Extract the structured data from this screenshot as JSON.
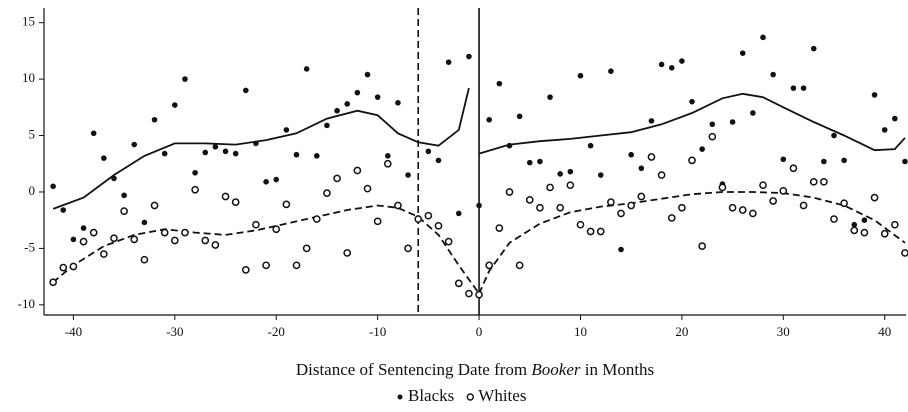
{
  "chart_data": {
    "type": "scatter",
    "x_label": {
      "before": "Distance of Sentencing Date from ",
      "italic": "Booker",
      "after": " in Months"
    },
    "xlim": [
      -42.9,
      42.1
    ],
    "ylim": [
      -10.9,
      16.3
    ],
    "xticks": [
      -40,
      -30,
      -20,
      -10,
      0,
      10,
      20,
      30,
      40
    ],
    "yticks": [
      -10,
      -5,
      0,
      5,
      10,
      15
    ],
    "reference_lines": [
      {
        "x": -6,
        "dashed": true
      },
      {
        "x": 0,
        "dashed": false
      }
    ],
    "x": [
      -42,
      -41,
      -40,
      -39,
      -38,
      -37,
      -36,
      -35,
      -34,
      -33,
      -32,
      -31,
      -30,
      -29,
      -28,
      -27,
      -26,
      -25,
      -24,
      -23,
      -22,
      -21,
      -20,
      -19,
      -18,
      -17,
      -16,
      -15,
      -14,
      -13,
      -12,
      -11,
      -10,
      -9,
      -8,
      -7,
      -6,
      -5,
      -4,
      -3,
      -2,
      -1,
      0,
      1,
      2,
      3,
      4,
      5,
      6,
      7,
      8,
      9,
      10,
      11,
      12,
      13,
      14,
      15,
      16,
      17,
      18,
      19,
      20,
      21,
      22,
      23,
      24,
      25,
      26,
      27,
      28,
      29,
      30,
      31,
      32,
      33,
      34,
      35,
      36,
      37,
      38,
      39,
      40,
      41,
      42
    ],
    "series": [
      {
        "name": "Blacks",
        "color": "#111111",
        "filled": true,
        "values": [
          0.5,
          -1.6,
          -4.2,
          -3.2,
          5.2,
          3.0,
          1.2,
          -0.3,
          4.2,
          -2.7,
          6.4,
          3.4,
          7.7,
          10.0,
          1.7,
          3.5,
          4.0,
          3.6,
          3.4,
          9.0,
          4.3,
          0.9,
          1.1,
          5.5,
          3.3,
          10.9,
          3.2,
          5.9,
          7.2,
          7.8,
          8.8,
          10.4,
          8.4,
          3.2,
          7.9,
          1.5,
          -2.3,
          3.6,
          2.8,
          11.5,
          -1.9,
          12.0,
          -1.2,
          6.4,
          9.6,
          4.1,
          6.7,
          2.6,
          2.7,
          8.4,
          1.6,
          1.8,
          10.3,
          4.1,
          1.5,
          10.7,
          -5.1,
          3.3,
          2.1,
          6.3,
          11.3,
          11.0,
          11.6,
          8.0,
          3.8,
          6.0,
          0.7,
          6.2,
          12.3,
          7.0,
          13.7,
          10.4,
          2.9,
          9.2,
          9.2,
          12.7,
          2.7,
          5.0,
          2.8,
          -2.9,
          -2.5,
          8.6,
          5.5,
          6.5,
          2.7
        ]
      },
      {
        "name": "Whites",
        "color": "#111111",
        "filled": false,
        "values": [
          -8.0,
          -6.7,
          -6.6,
          -4.4,
          -3.6,
          -5.5,
          -4.1,
          -1.7,
          -4.2,
          -6.0,
          -1.2,
          -3.6,
          -4.3,
          -3.6,
          0.2,
          -4.3,
          -4.7,
          -0.4,
          -0.9,
          -6.9,
          -2.9,
          -6.5,
          -3.3,
          -1.1,
          -6.5,
          -5.0,
          -2.4,
          -0.1,
          1.2,
          -5.4,
          1.9,
          0.3,
          -2.6,
          2.5,
          -1.2,
          -5.0,
          -2.4,
          -2.1,
          -3.0,
          -4.4,
          -8.1,
          -9.0,
          -9.1,
          -6.5,
          -3.2,
          0.0,
          -6.5,
          -0.7,
          -1.4,
          0.4,
          -1.4,
          0.6,
          -2.9,
          -3.5,
          -3.5,
          -0.9,
          -1.9,
          -1.2,
          -0.4,
          3.1,
          1.5,
          -2.3,
          -1.4,
          2.8,
          -4.8,
          4.9,
          0.4,
          -1.4,
          -1.6,
          -1.9,
          0.6,
          -0.8,
          0.1,
          2.1,
          -1.2,
          0.9,
          0.9,
          -2.4,
          -1.0,
          -3.4,
          -3.6,
          -0.5,
          -3.7,
          -2.9,
          -5.4
        ]
      }
    ],
    "fits": [
      {
        "dashed": false,
        "color": "#111111",
        "x": [
          -42,
          -39,
          -36,
          -33,
          -30,
          -27,
          -24,
          -21,
          -18,
          -15,
          -12,
          -10,
          -8,
          -6,
          -4,
          -2,
          -1,
          null,
          0,
          3,
          6,
          9,
          12,
          15,
          18,
          21,
          24,
          26,
          28,
          30,
          33,
          36,
          39,
          41,
          42
        ],
        "values": [
          -1.5,
          -0.5,
          1.5,
          3.2,
          4.3,
          4.3,
          4.2,
          4.6,
          5.2,
          6.5,
          7.2,
          6.8,
          5.2,
          4.4,
          4.1,
          5.5,
          9.2,
          null,
          3.4,
          4.2,
          4.5,
          4.7,
          5.0,
          5.3,
          6.0,
          7.0,
          8.3,
          8.7,
          8.4,
          7.5,
          6.2,
          5.0,
          3.7,
          3.8,
          4.8
        ]
      },
      {
        "dashed": true,
        "color": "#111111",
        "x": [
          -42,
          -40,
          -37,
          -34,
          -31,
          -28,
          -25,
          -22,
          -19,
          -16,
          -13,
          -10,
          -8,
          -6,
          -4,
          -2,
          0,
          null,
          0,
          1,
          3,
          6,
          9,
          12,
          15,
          18,
          21,
          24,
          27,
          30,
          33,
          36,
          39,
          42
        ],
        "values": [
          -8,
          -6.5,
          -4.8,
          -3.8,
          -3.3,
          -3.6,
          -3.8,
          -3.4,
          -2.8,
          -2.2,
          -1.6,
          -1.2,
          -1.4,
          -2.2,
          -3.8,
          -6.5,
          -9,
          null,
          -9,
          -7,
          -4.5,
          -2.8,
          -1.8,
          -1.3,
          -1.0,
          -0.6,
          -0.2,
          0,
          0,
          -0.1,
          -0.5,
          -1.2,
          -2.5,
          -4.5
        ]
      }
    ]
  }
}
